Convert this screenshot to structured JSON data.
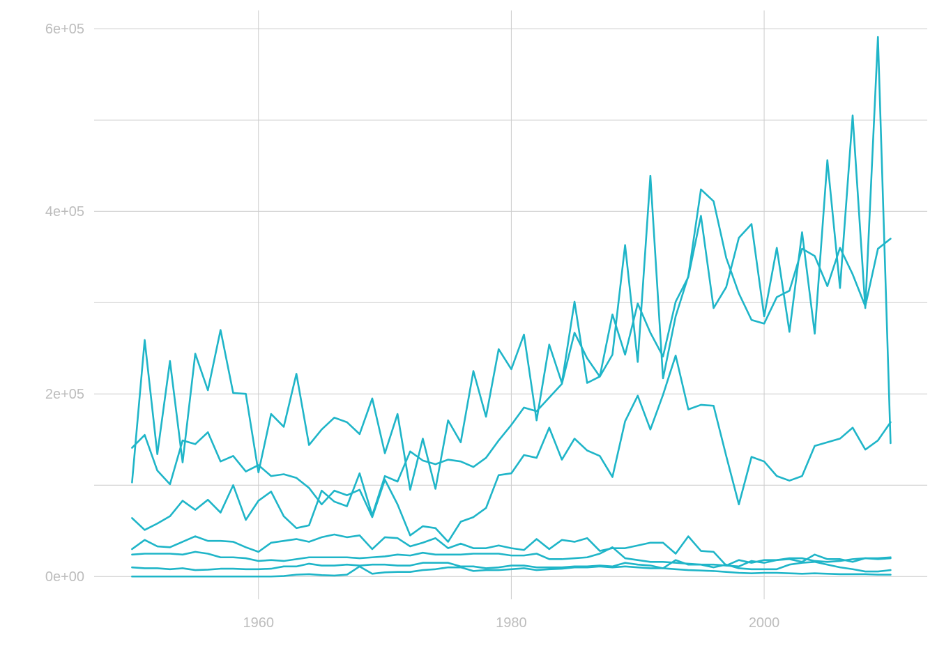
{
  "chart_data": {
    "type": "line",
    "title": "",
    "xlabel": "",
    "ylabel": "",
    "xlim": [
      1947,
      2012.9
    ],
    "ylim": [
      -25000,
      620000
    ],
    "x_ticks": [
      1960,
      1980,
      2000
    ],
    "x_tick_labels": [
      "1960",
      "1980",
      "2000"
    ],
    "y_ticks": [
      0,
      200000,
      400000,
      600000
    ],
    "y_tick_labels": [
      "0e+00",
      "2e+05",
      "4e+05",
      "6e+05"
    ],
    "y_minor_ticks": [
      100000,
      300000,
      500000
    ],
    "x_minor_ticks": [],
    "grid": true,
    "legend": "none",
    "line_color": "#1fb5c8",
    "x": [
      1950,
      1951,
      1952,
      1953,
      1954,
      1955,
      1956,
      1957,
      1958,
      1959,
      1960,
      1961,
      1962,
      1963,
      1964,
      1965,
      1966,
      1967,
      1968,
      1969,
      1970,
      1971,
      1972,
      1973,
      1974,
      1975,
      1976,
      1977,
      1978,
      1979,
      1980,
      1981,
      1982,
      1983,
      1984,
      1985,
      1986,
      1987,
      1988,
      1989,
      1990,
      1991,
      1992,
      1993,
      1994,
      1995,
      1996,
      1997,
      1998,
      1999,
      2000,
      2001,
      2002,
      2003,
      2004,
      2005,
      2006,
      2007,
      2008,
      2009,
      2010
    ],
    "series": [
      {
        "values": [
          103000,
          259000,
          134000,
          236000,
          125000,
          244000,
          204000,
          270000,
          201000,
          200000,
          114000,
          178000,
          164000,
          222000,
          144000,
          161000,
          174000,
          169000,
          156000,
          195000,
          135000,
          178000,
          95000,
          151000,
          96000,
          171000,
          147000,
          225000,
          175000,
          249000,
          227000,
          265000,
          171000,
          254000,
          212000,
          301000,
          212000,
          219000,
          287000,
          243000,
          299000,
          267000,
          241000,
          301000,
          328000,
          395000,
          294000,
          317000,
          371000,
          386000,
          285000,
          360000,
          268000,
          377000,
          266000,
          456000,
          316000,
          505000,
          294000,
          591000,
          146000
        ]
      },
      {
        "values": [
          141000,
          155000,
          116000,
          101000,
          149000,
          145000,
          158000,
          126000,
          132000,
          115000,
          122000,
          110000,
          112000,
          108000,
          97000,
          79000,
          94000,
          89000,
          95000,
          65000,
          106000,
          79000,
          45000,
          55000,
          53000,
          38000,
          60000,
          65000,
          75000,
          111000,
          113000,
          133000,
          130000,
          163000,
          128000,
          151000,
          138000,
          132000,
          109000,
          170000,
          198000,
          161000,
          199000,
          242000,
          183000,
          188000,
          187000,
          132000,
          79000,
          131000,
          126000,
          110000,
          105000,
          110000,
          143000,
          147000,
          151000,
          163000,
          139000,
          149000,
          169000
        ]
      },
      {
        "values": [
          64000,
          51000,
          58000,
          66000,
          83000,
          73000,
          84000,
          70000,
          100000,
          62000,
          83000,
          93000,
          66000,
          53000,
          56000,
          94000,
          82000,
          77000,
          113000,
          67000,
          110000,
          104000,
          137000,
          127000,
          123000,
          128000,
          126000,
          120000,
          130000,
          149000,
          166000,
          185000,
          181000,
          196000,
          211000,
          267000,
          239000,
          219000,
          243000,
          363000,
          235000,
          439000,
          217000,
          285000,
          329000,
          424000,
          411000,
          349000,
          310000,
          281000,
          277000,
          306000,
          313000,
          359000,
          351000,
          318000,
          360000,
          331000,
          296000,
          359000,
          370000
        ]
      },
      {
        "values": [
          30000,
          40000,
          33000,
          32000,
          38000,
          44000,
          39000,
          39000,
          38000,
          32000,
          27000,
          37000,
          39000,
          41000,
          38000,
          43000,
          46000,
          43000,
          45000,
          30000,
          43000,
          42000,
          33000,
          37000,
          42000,
          31000,
          36000,
          31000,
          31000,
          34000,
          31000,
          29000,
          41000,
          30000,
          40000,
          38000,
          42000,
          28000,
          31000,
          31000,
          34000,
          37000,
          37000,
          25000,
          44000,
          28000,
          27000,
          12000,
          18000,
          15000,
          18000,
          18000,
          19000,
          16000,
          24000,
          19000,
          19000,
          16000,
          20000,
          19000,
          20000
        ]
      },
      {
        "values": [
          24000,
          25000,
          25000,
          25000,
          24000,
          27000,
          25000,
          21000,
          21000,
          20000,
          17000,
          18000,
          17000,
          19000,
          21000,
          21000,
          21000,
          21000,
          20000,
          21000,
          22000,
          24000,
          23000,
          26000,
          24000,
          24000,
          24000,
          25000,
          25000,
          25000,
          23000,
          23000,
          25000,
          19000,
          19000,
          20000,
          21000,
          25000,
          32000,
          20000,
          18000,
          16000,
          16000,
          15000,
          14000,
          13000,
          13000,
          12000,
          11000,
          17000,
          15000,
          18000,
          20000,
          20000,
          17000,
          16000,
          17000,
          19000,
          20000,
          20000,
          21000
        ]
      },
      {
        "values": [
          10000,
          9000,
          9000,
          8000,
          9000,
          7000,
          7500,
          8500,
          8500,
          8000,
          8000,
          8500,
          11000,
          11000,
          14000,
          12000,
          12000,
          13000,
          12000,
          13000,
          13000,
          12000,
          12000,
          15000,
          15000,
          15000,
          11000,
          11000,
          9000,
          10000,
          12000,
          12000,
          10000,
          10000,
          10000,
          11000,
          11000,
          12000,
          11000,
          15000,
          13000,
          12000,
          9000,
          18000,
          13000,
          13000,
          10000,
          13000,
          9000,
          8000,
          8000,
          8000,
          13000,
          15000,
          16000,
          13000,
          10000,
          8000,
          5500,
          5500,
          7000
        ]
      },
      {
        "values": [
          0,
          0,
          0,
          0,
          0,
          0,
          0,
          0,
          0,
          0,
          0,
          0,
          500,
          2000,
          2500,
          1500,
          1000,
          2000,
          11000,
          3000,
          4500,
          5000,
          5000,
          7000,
          8000,
          10000,
          10000,
          6000,
          7000,
          7000,
          8000,
          9000,
          7000,
          8000,
          8500,
          10000,
          10000,
          11000,
          10000,
          11000,
          10000,
          9000,
          9000,
          8000,
          7000,
          6500,
          6000,
          5000,
          4000,
          3500,
          4000,
          4000,
          3500,
          3000,
          3500,
          3000,
          2500,
          2500,
          2500,
          2000,
          2000
        ]
      }
    ]
  }
}
